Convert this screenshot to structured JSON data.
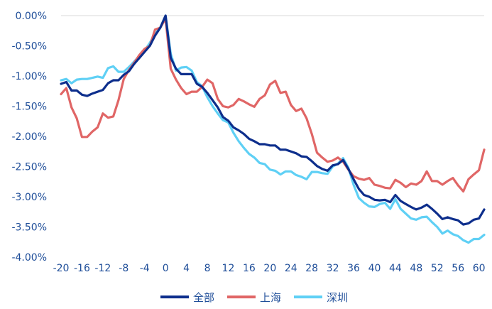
{
  "chart_data": {
    "type": "line",
    "title": "",
    "xlabel": "",
    "ylabel": "",
    "xlim": [
      -20,
      61
    ],
    "ylim": [
      -4.0,
      0.0
    ],
    "y_ticks": [
      {
        "value": 0.0,
        "label": "0.00%"
      },
      {
        "value": -0.5,
        "label": "-0.50%"
      },
      {
        "value": -1.0,
        "label": "-1.00%"
      },
      {
        "value": -1.5,
        "label": "-1.50%"
      },
      {
        "value": -2.0,
        "label": "-2.00%"
      },
      {
        "value": -2.5,
        "label": "-2.50%"
      },
      {
        "value": -3.0,
        "label": "-3.00%"
      },
      {
        "value": -3.5,
        "label": "-3.50%"
      },
      {
        "value": -4.0,
        "label": "-4.00%"
      }
    ],
    "x_ticks": [
      {
        "value": -20,
        "label": "-20"
      },
      {
        "value": -16,
        "label": "-16"
      },
      {
        "value": -12,
        "label": "-12"
      },
      {
        "value": -8,
        "label": "-8"
      },
      {
        "value": -4,
        "label": "-4"
      },
      {
        "value": 0,
        "label": "0"
      },
      {
        "value": 4,
        "label": "4"
      },
      {
        "value": 8,
        "label": "8"
      },
      {
        "value": 12,
        "label": "12"
      },
      {
        "value": 16,
        "label": "16"
      },
      {
        "value": 20,
        "label": "20"
      },
      {
        "value": 24,
        "label": "24"
      },
      {
        "value": 28,
        "label": "28"
      },
      {
        "value": 32,
        "label": "32"
      },
      {
        "value": 36,
        "label": "36"
      },
      {
        "value": 40,
        "label": "40"
      },
      {
        "value": 44,
        "label": "44"
      },
      {
        "value": 48,
        "label": "48"
      },
      {
        "value": 52,
        "label": "52"
      },
      {
        "value": 56,
        "label": "56"
      },
      {
        "value": 60,
        "label": "60"
      }
    ],
    "grid": false,
    "legend": "bottom",
    "x": [
      -20,
      -19,
      -18,
      -17,
      -16,
      -15,
      -14,
      -13,
      -12,
      -11,
      -10,
      -9,
      -8,
      -7,
      -6,
      -5,
      -4,
      -3,
      -2,
      -1,
      0,
      1,
      2,
      3,
      4,
      5,
      6,
      7,
      8,
      9,
      10,
      11,
      12,
      13,
      14,
      15,
      16,
      17,
      18,
      19,
      20,
      21,
      22,
      23,
      24,
      25,
      26,
      27,
      28,
      29,
      30,
      31,
      32,
      33,
      34,
      35,
      36,
      37,
      38,
      39,
      40,
      41,
      42,
      43,
      44,
      45,
      46,
      47,
      48,
      49,
      50,
      51,
      52,
      53,
      54,
      55,
      56,
      57,
      58,
      59,
      60,
      61
    ],
    "series": [
      {
        "name": "全部",
        "color": "#0d2e8c",
        "values": [
          -1.13,
          -1.1,
          -1.24,
          -1.24,
          -1.31,
          -1.33,
          -1.29,
          -1.26,
          -1.23,
          -1.12,
          -1.07,
          -1.07,
          -0.98,
          -0.92,
          -0.8,
          -0.7,
          -0.6,
          -0.5,
          -0.33,
          -0.2,
          0.0,
          -0.7,
          -0.88,
          -0.97,
          -0.97,
          -0.97,
          -1.13,
          -1.18,
          -1.28,
          -1.4,
          -1.52,
          -1.68,
          -1.74,
          -1.85,
          -1.9,
          -1.96,
          -2.04,
          -2.08,
          -2.13,
          -2.13,
          -2.15,
          -2.15,
          -2.22,
          -2.22,
          -2.25,
          -2.28,
          -2.33,
          -2.34,
          -2.41,
          -2.49,
          -2.54,
          -2.57,
          -2.48,
          -2.46,
          -2.39,
          -2.54,
          -2.71,
          -2.87,
          -2.97,
          -3.0,
          -3.05,
          -3.06,
          -3.05,
          -3.09,
          -2.97,
          -3.07,
          -3.12,
          -3.17,
          -3.21,
          -3.18,
          -3.13,
          -3.2,
          -3.28,
          -3.37,
          -3.34,
          -3.37,
          -3.39,
          -3.46,
          -3.44,
          -3.38,
          -3.36,
          -3.21
        ]
      },
      {
        "name": "上海",
        "color": "#e06666",
        "values": [
          -1.3,
          -1.2,
          -1.52,
          -1.7,
          -2.01,
          -2.01,
          -1.92,
          -1.85,
          -1.62,
          -1.69,
          -1.67,
          -1.4,
          -1.05,
          -0.9,
          -0.78,
          -0.65,
          -0.55,
          -0.5,
          -0.23,
          -0.2,
          -0.05,
          -0.88,
          -1.06,
          -1.2,
          -1.3,
          -1.26,
          -1.26,
          -1.18,
          -1.06,
          -1.12,
          -1.38,
          -1.5,
          -1.52,
          -1.48,
          -1.38,
          -1.42,
          -1.47,
          -1.51,
          -1.38,
          -1.32,
          -1.14,
          -1.08,
          -1.28,
          -1.26,
          -1.48,
          -1.58,
          -1.54,
          -1.7,
          -1.96,
          -2.27,
          -2.35,
          -2.42,
          -2.4,
          -2.35,
          -2.42,
          -2.55,
          -2.66,
          -2.7,
          -2.72,
          -2.69,
          -2.8,
          -2.82,
          -2.85,
          -2.86,
          -2.72,
          -2.77,
          -2.84,
          -2.78,
          -2.8,
          -2.74,
          -2.58,
          -2.74,
          -2.74,
          -2.8,
          -2.74,
          -2.69,
          -2.81,
          -2.91,
          -2.71,
          -2.63,
          -2.56,
          -2.22
        ]
      },
      {
        "name": "深圳",
        "color": "#5fd0f5",
        "values": [
          -1.07,
          -1.05,
          -1.12,
          -1.06,
          -1.05,
          -1.05,
          -1.03,
          -1.01,
          -1.03,
          -0.87,
          -0.84,
          -0.93,
          -0.93,
          -0.85,
          -0.76,
          -0.67,
          -0.58,
          -0.45,
          -0.3,
          -0.2,
          0.0,
          -0.63,
          -0.91,
          -0.86,
          -0.85,
          -0.91,
          -1.1,
          -1.17,
          -1.35,
          -1.5,
          -1.62,
          -1.73,
          -1.77,
          -1.94,
          -2.08,
          -2.19,
          -2.29,
          -2.35,
          -2.44,
          -2.46,
          -2.55,
          -2.57,
          -2.63,
          -2.58,
          -2.58,
          -2.64,
          -2.67,
          -2.71,
          -2.59,
          -2.59,
          -2.61,
          -2.62,
          -2.5,
          -2.45,
          -2.36,
          -2.52,
          -2.8,
          -3.02,
          -3.1,
          -3.16,
          -3.17,
          -3.12,
          -3.1,
          -3.2,
          -3.04,
          -3.2,
          -3.28,
          -3.36,
          -3.38,
          -3.34,
          -3.33,
          -3.42,
          -3.5,
          -3.61,
          -3.56,
          -3.62,
          -3.65,
          -3.72,
          -3.76,
          -3.7,
          -3.7,
          -3.63
        ]
      }
    ]
  }
}
